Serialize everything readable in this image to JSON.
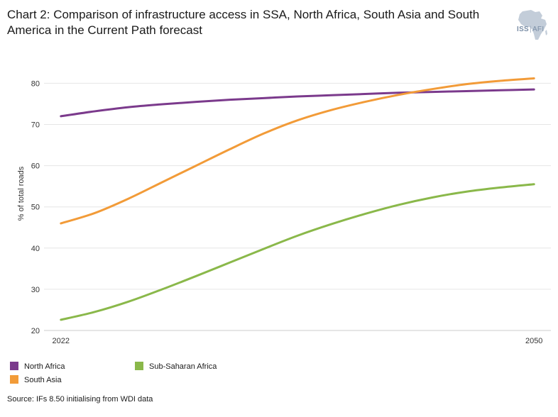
{
  "title": "Chart 2: Comparison of infrastructure access in SSA, North Africa, South Asia and South America in the Current Path forecast",
  "logo": {
    "brand": "ISS",
    "divider": "|",
    "suffix": "AFI",
    "icon": "africa-map-icon"
  },
  "source": "Source: IFs 8.50 initialising from WDI data",
  "colors": {
    "north_africa": "#7b3a8c",
    "south_asia": "#f29b38",
    "ssa": "#8ab84a",
    "grid": "#e6e6e6",
    "axis": "#cccccc"
  },
  "chart_data": {
    "type": "line",
    "title": "Chart 2: Comparison of infrastructure access in SSA, North Africa, South Asia and South America in the Current Path forecast",
    "xlabel": "",
    "ylabel": "% of total roads",
    "xlim": [
      2021,
      2051
    ],
    "ylim": [
      20,
      83
    ],
    "x_ticks": [
      2022,
      2050
    ],
    "y_ticks": [
      20,
      30,
      40,
      50,
      60,
      70,
      80
    ],
    "legend_position": "bottom-left",
    "series": [
      {
        "name": "North Africa",
        "color": "#7b3a8c",
        "x": [
          2022,
          2024,
          2026,
          2028,
          2030,
          2032,
          2034,
          2036,
          2038,
          2040,
          2042,
          2044,
          2046,
          2048,
          2050
        ],
        "y": [
          72.0,
          73.2,
          74.2,
          74.9,
          75.5,
          76.0,
          76.4,
          76.8,
          77.1,
          77.4,
          77.7,
          77.9,
          78.1,
          78.3,
          78.5
        ]
      },
      {
        "name": "South Asia",
        "color": "#f29b38",
        "x": [
          2022,
          2024,
          2026,
          2028,
          2030,
          2032,
          2034,
          2036,
          2038,
          2040,
          2042,
          2044,
          2046,
          2048,
          2050
        ],
        "y": [
          46.0,
          48.5,
          52.0,
          56.0,
          60.0,
          64.0,
          67.8,
          71.0,
          73.5,
          75.5,
          77.2,
          78.6,
          79.8,
          80.6,
          81.2
        ]
      },
      {
        "name": "Sub-Saharan Africa",
        "color": "#8ab84a",
        "x": [
          2022,
          2024,
          2026,
          2028,
          2030,
          2032,
          2034,
          2036,
          2038,
          2040,
          2042,
          2044,
          2046,
          2048,
          2050
        ],
        "y": [
          22.6,
          24.5,
          27.0,
          30.0,
          33.2,
          36.5,
          39.8,
          43.0,
          45.8,
          48.3,
          50.5,
          52.3,
          53.7,
          54.7,
          55.5
        ]
      }
    ]
  }
}
